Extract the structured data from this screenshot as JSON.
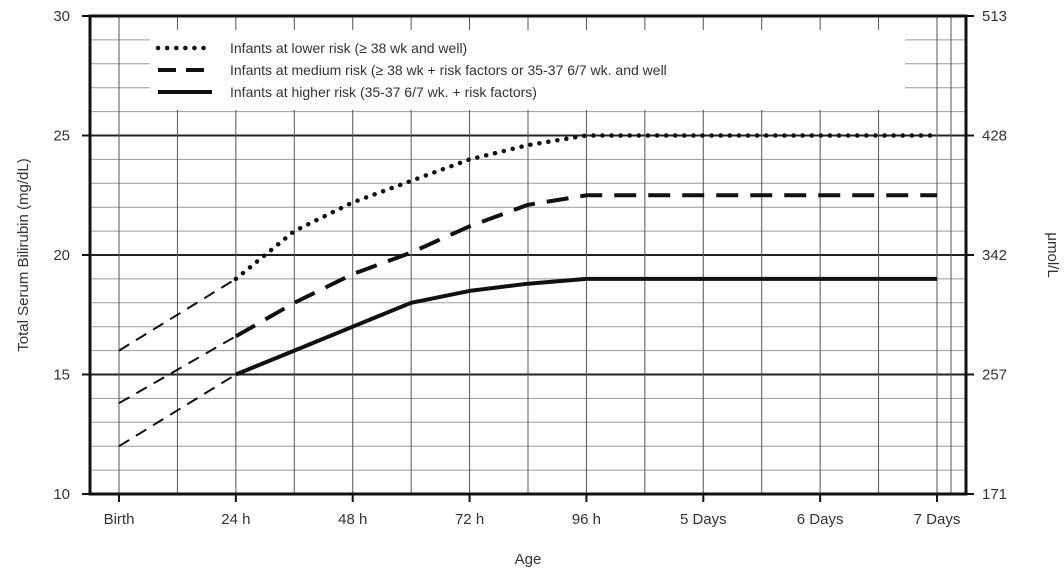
{
  "chart_data": {
    "type": "line",
    "xlabel": "Age",
    "ylabel": "Total Serum Bilirubin (mg/dL)",
    "ylabel_right": "μmol/L",
    "ylim": [
      10,
      30
    ],
    "y_ticks": [
      "10",
      "15",
      "20",
      "25",
      "30"
    ],
    "y_right_ticks": [
      "171",
      "257",
      "342",
      "428",
      "513"
    ],
    "x_ticks": [
      "Birth",
      "24 h",
      "48 h",
      "72 h",
      "96 h",
      "5 Days",
      "6 Days",
      "7 Days"
    ],
    "x_unit": "hours",
    "grid": true,
    "legend_position": "top-left",
    "series": [
      {
        "name": "Infants at lower risk (≥ 38 wk and well)",
        "style": "dotted",
        "x": [
          0,
          24,
          36,
          48,
          60,
          72,
          84,
          96,
          120,
          144,
          168
        ],
        "y": [
          16,
          19,
          21,
          22.2,
          23.1,
          24,
          24.6,
          25,
          25,
          25,
          25
        ]
      },
      {
        "name": "Infants at medium risk (≥ 38 wk + risk factors or 35-37 6/7 wk. and well",
        "style": "dashed",
        "x": [
          0,
          24,
          36,
          48,
          60,
          72,
          84,
          96,
          120,
          144,
          168
        ],
        "y": [
          13.8,
          16.6,
          18,
          19.2,
          20.1,
          21.2,
          22.1,
          22.5,
          22.5,
          22.5,
          22.5
        ]
      },
      {
        "name": "Infants at higher risk (35-37 6/7 wk. + risk factors)",
        "style": "solid",
        "x": [
          0,
          24,
          36,
          48,
          60,
          72,
          84,
          96,
          120,
          144,
          168
        ],
        "y": [
          12,
          15,
          16,
          17,
          18,
          18.5,
          18.8,
          19,
          19,
          19,
          19
        ]
      }
    ]
  }
}
